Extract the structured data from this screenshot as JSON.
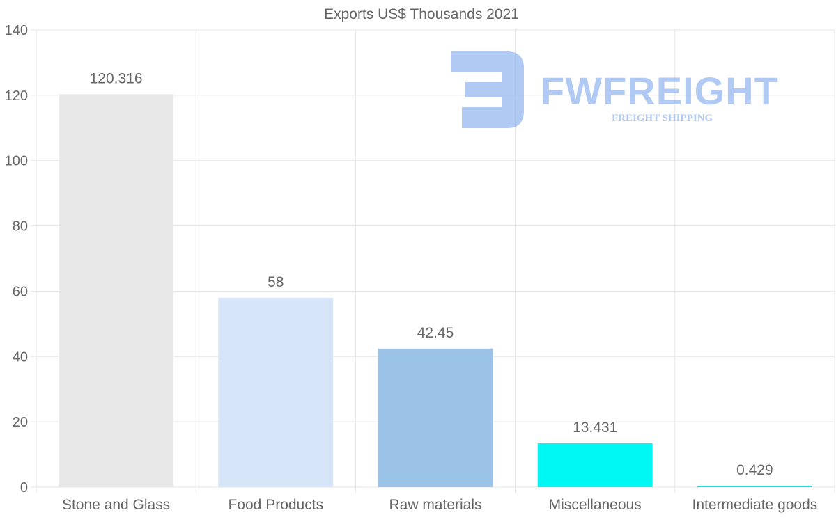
{
  "chart_data": {
    "type": "bar",
    "title": "Exports US$ Thousands 2021",
    "categories": [
      "Stone and Glass",
      "Food Products",
      "Raw materials",
      "Miscellaneous",
      "Intermediate goods"
    ],
    "values": [
      120.316,
      58,
      42.45,
      13.431,
      0.429
    ],
    "value_labels": [
      "120.316",
      "58",
      "42.45",
      "13.431",
      "0.429"
    ],
    "colors": [
      "#e8e8e8",
      "#d6e6f8",
      "#9bc3e8",
      "#00f8f4",
      "#22d8d8"
    ],
    "ylim": [
      0,
      140
    ],
    "yticks": [
      0,
      20,
      40,
      60,
      80,
      100,
      120,
      140
    ],
    "xlabel": "",
    "ylabel": "",
    "grid": true
  },
  "watermark": {
    "brand": "FWFREIGHT",
    "tagline": "FREIGHT SHIPPING",
    "color": "#8fb4ef"
  }
}
